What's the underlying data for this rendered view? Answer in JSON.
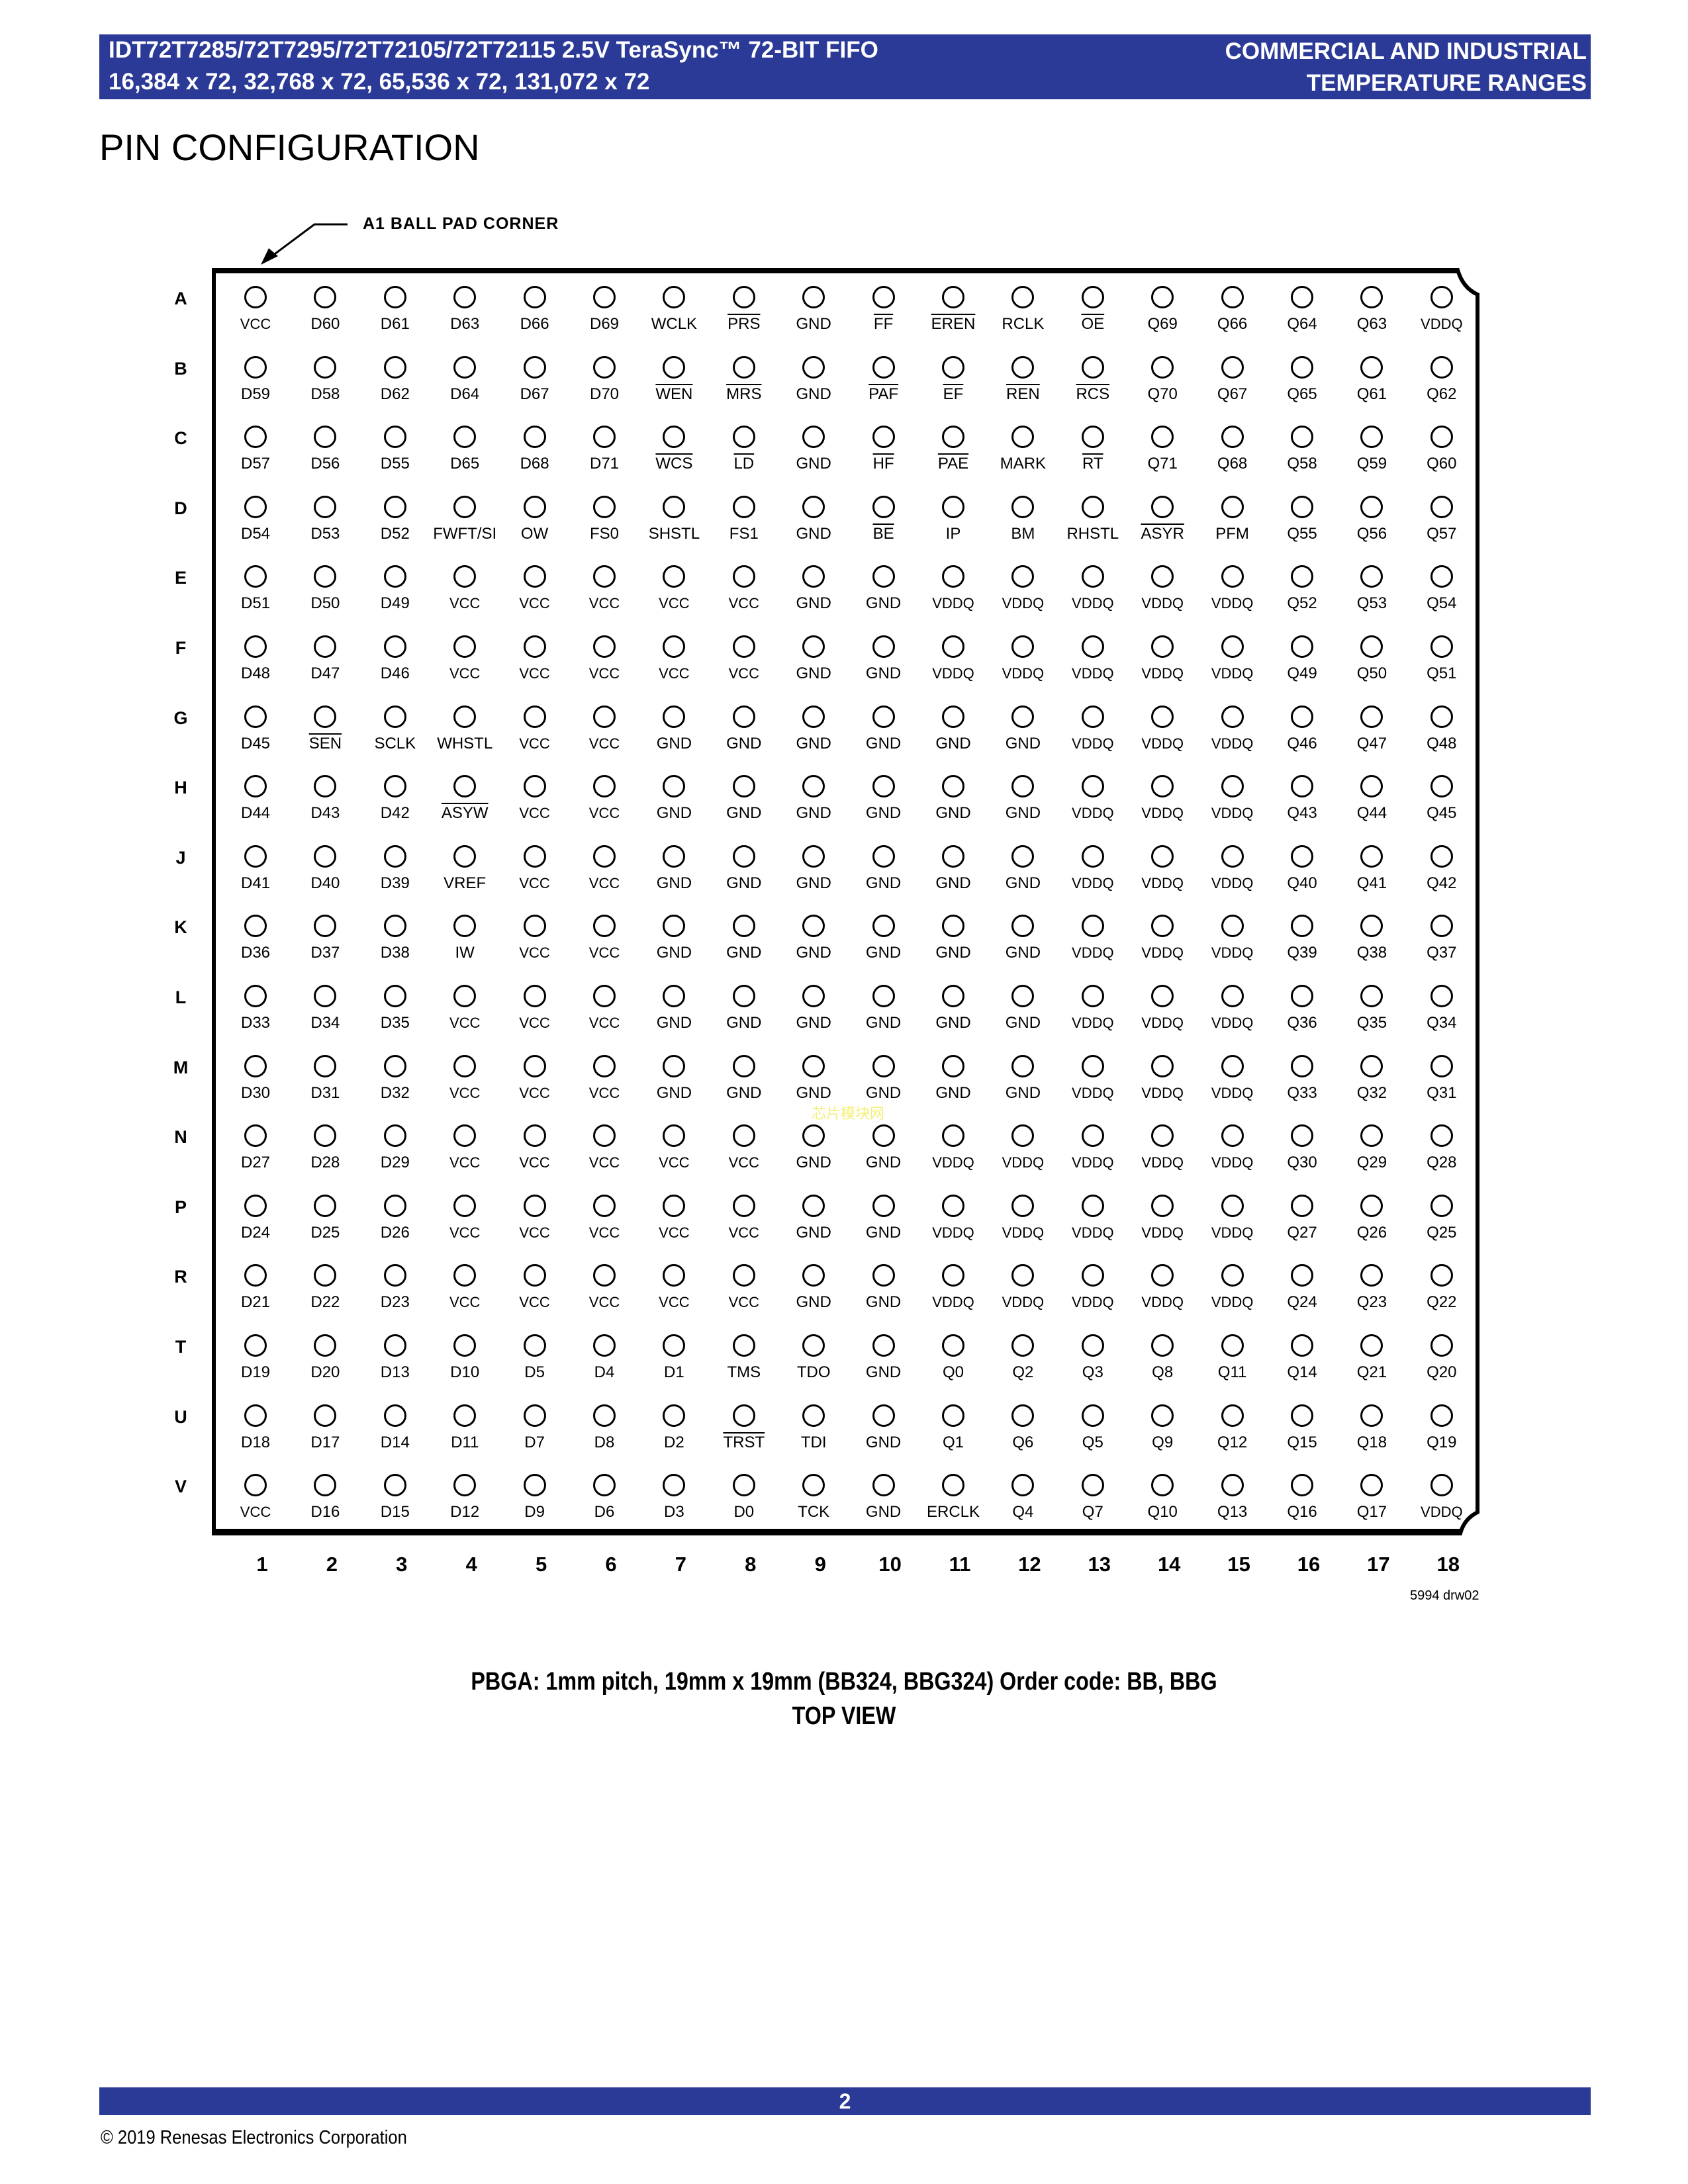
{
  "header": {
    "line1": "IDT72T7285/72T7295/72T72105/72T72115 2.5V TeraSync™ 72-BIT FIFO",
    "line2": "16,384 x 72, 32,768 x 72, 65,536 x 72, 131,072 x 72",
    "right1": "COMMERCIAL AND INDUSTRIAL",
    "right2": "TEMPERATURE RANGES",
    "color": "#2b3a97"
  },
  "title": "PIN CONFIGURATION",
  "a1_label": "A1 BALL PAD CORNER",
  "columns": [
    "1",
    "2",
    "3",
    "4",
    "5",
    "6",
    "7",
    "8",
    "9",
    "10",
    "11",
    "12",
    "13",
    "14",
    "15",
    "16",
    "17",
    "18"
  ],
  "active_low_pins": [
    "PRS",
    "FF",
    "EREN",
    "OE",
    "WEN",
    "MRS",
    "PAF",
    "EF",
    "REN",
    "RCS",
    "WCS",
    "LD",
    "HF",
    "PAE",
    "RT",
    "BE",
    "ASYR",
    "SEN",
    "ASYW",
    "TRST"
  ],
  "rows": [
    {
      "row": "A",
      "pins": [
        "VCC",
        "D60",
        "D61",
        "D63",
        "D66",
        "D69",
        "WCLK",
        "PRS",
        "GND",
        "FF",
        "EREN",
        "RCLK",
        "OE",
        "Q69",
        "Q66",
        "Q64",
        "Q63",
        "VDDQ"
      ]
    },
    {
      "row": "B",
      "pins": [
        "D59",
        "D58",
        "D62",
        "D64",
        "D67",
        "D70",
        "WEN",
        "MRS",
        "GND",
        "PAF",
        "EF",
        "REN",
        "RCS",
        "Q70",
        "Q67",
        "Q65",
        "Q61",
        "Q62"
      ]
    },
    {
      "row": "C",
      "pins": [
        "D57",
        "D56",
        "D55",
        "D65",
        "D68",
        "D71",
        "WCS",
        "LD",
        "GND",
        "HF",
        "PAE",
        "MARK",
        "RT",
        "Q71",
        "Q68",
        "Q58",
        "Q59",
        "Q60"
      ]
    },
    {
      "row": "D",
      "pins": [
        "D54",
        "D53",
        "D52",
        "FWFT/SI",
        "OW",
        "FS0",
        "SHSTL",
        "FS1",
        "GND",
        "BE",
        "IP",
        "BM",
        "RHSTL",
        "ASYR",
        "PFM",
        "Q55",
        "Q56",
        "Q57"
      ]
    },
    {
      "row": "E",
      "pins": [
        "D51",
        "D50",
        "D49",
        "VCC",
        "VCC",
        "VCC",
        "VCC",
        "VCC",
        "GND",
        "GND",
        "VDDQ",
        "VDDQ",
        "VDDQ",
        "VDDQ",
        "VDDQ",
        "Q52",
        "Q53",
        "Q54"
      ]
    },
    {
      "row": "F",
      "pins": [
        "D48",
        "D47",
        "D46",
        "VCC",
        "VCC",
        "VCC",
        "VCC",
        "VCC",
        "GND",
        "GND",
        "VDDQ",
        "VDDQ",
        "VDDQ",
        "VDDQ",
        "VDDQ",
        "Q49",
        "Q50",
        "Q51"
      ]
    },
    {
      "row": "G",
      "pins": [
        "D45",
        "SEN",
        "SCLK",
        "WHSTL",
        "VCC",
        "VCC",
        "GND",
        "GND",
        "GND",
        "GND",
        "GND",
        "GND",
        "VDDQ",
        "VDDQ",
        "VDDQ",
        "Q46",
        "Q47",
        "Q48"
      ]
    },
    {
      "row": "H",
      "pins": [
        "D44",
        "D43",
        "D42",
        "ASYW",
        "VCC",
        "VCC",
        "GND",
        "GND",
        "GND",
        "GND",
        "GND",
        "GND",
        "VDDQ",
        "VDDQ",
        "VDDQ",
        "Q43",
        "Q44",
        "Q45"
      ]
    },
    {
      "row": "J",
      "pins": [
        "D41",
        "D40",
        "D39",
        "VREF",
        "VCC",
        "VCC",
        "GND",
        "GND",
        "GND",
        "GND",
        "GND",
        "GND",
        "VDDQ",
        "VDDQ",
        "VDDQ",
        "Q40",
        "Q41",
        "Q42"
      ]
    },
    {
      "row": "K",
      "pins": [
        "D36",
        "D37",
        "D38",
        "IW",
        "VCC",
        "VCC",
        "GND",
        "GND",
        "GND",
        "GND",
        "GND",
        "GND",
        "VDDQ",
        "VDDQ",
        "VDDQ",
        "Q39",
        "Q38",
        "Q37"
      ]
    },
    {
      "row": "L",
      "pins": [
        "D33",
        "D34",
        "D35",
        "VCC",
        "VCC",
        "VCC",
        "GND",
        "GND",
        "GND",
        "GND",
        "GND",
        "GND",
        "VDDQ",
        "VDDQ",
        "VDDQ",
        "Q36",
        "Q35",
        "Q34"
      ]
    },
    {
      "row": "M",
      "pins": [
        "D30",
        "D31",
        "D32",
        "VCC",
        "VCC",
        "VCC",
        "GND",
        "GND",
        "GND",
        "GND",
        "GND",
        "GND",
        "VDDQ",
        "VDDQ",
        "VDDQ",
        "Q33",
        "Q32",
        "Q31"
      ]
    },
    {
      "row": "N",
      "pins": [
        "D27",
        "D28",
        "D29",
        "VCC",
        "VCC",
        "VCC",
        "VCC",
        "VCC",
        "GND",
        "GND",
        "VDDQ",
        "VDDQ",
        "VDDQ",
        "VDDQ",
        "VDDQ",
        "Q30",
        "Q29",
        "Q28"
      ]
    },
    {
      "row": "P",
      "pins": [
        "D24",
        "D25",
        "D26",
        "VCC",
        "VCC",
        "VCC",
        "VCC",
        "VCC",
        "GND",
        "GND",
        "VDDQ",
        "VDDQ",
        "VDDQ",
        "VDDQ",
        "VDDQ",
        "Q27",
        "Q26",
        "Q25"
      ]
    },
    {
      "row": "R",
      "pins": [
        "D21",
        "D22",
        "D23",
        "VCC",
        "VCC",
        "VCC",
        "VCC",
        "VCC",
        "GND",
        "GND",
        "VDDQ",
        "VDDQ",
        "VDDQ",
        "VDDQ",
        "VDDQ",
        "Q24",
        "Q23",
        "Q22"
      ]
    },
    {
      "row": "T",
      "pins": [
        "D19",
        "D20",
        "D13",
        "D10",
        "D5",
        "D4",
        "D1",
        "TMS",
        "TDO",
        "GND",
        "Q0",
        "Q2",
        "Q3",
        "Q8",
        "Q11",
        "Q14",
        "Q21",
        "Q20"
      ]
    },
    {
      "row": "U",
      "pins": [
        "D18",
        "D17",
        "D14",
        "D11",
        "D7",
        "D8",
        "D2",
        "TRST",
        "TDI",
        "GND",
        "Q1",
        "Q6",
        "Q5",
        "Q9",
        "Q12",
        "Q15",
        "Q18",
        "Q19"
      ]
    },
    {
      "row": "V",
      "pins": [
        "VCC",
        "D16",
        "D15",
        "D12",
        "D9",
        "D6",
        "D3",
        "D0",
        "TCK",
        "GND",
        "ERCLK",
        "Q4",
        "Q7",
        "Q10",
        "Q13",
        "Q16",
        "Q17",
        "VDDQ"
      ]
    }
  ],
  "drawing_id": "5994 drw02",
  "caption1": "PBGA: 1mm pitch, 19mm x 19mm  (BB324, BBG324) Order code: BB, BBG",
  "caption2": "TOP VIEW",
  "watermark": "芯片模块网",
  "page_number": "2",
  "copyright": "© 2019 Renesas Electronics Corporation"
}
